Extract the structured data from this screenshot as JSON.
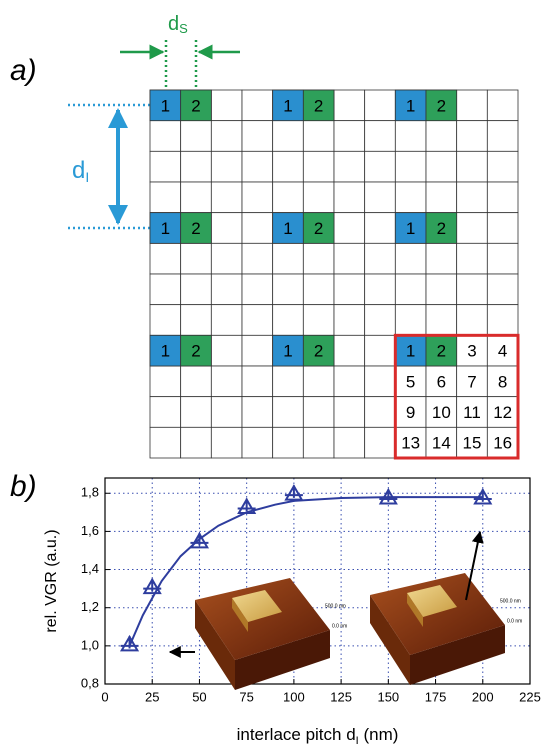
{
  "panel_a": {
    "label": "a)",
    "ds": {
      "main": "d",
      "sub": "S"
    },
    "di": {
      "main": "d",
      "sub": "I"
    },
    "pairs": [
      [
        "1",
        "2"
      ],
      [
        "1",
        "2"
      ],
      [
        "1",
        "2"
      ],
      [
        "1",
        "2"
      ],
      [
        "1",
        "2"
      ],
      [
        "1",
        "2"
      ],
      [
        "1",
        "2"
      ],
      [
        "1",
        "2"
      ]
    ],
    "matrix": [
      "1",
      "2",
      "3",
      "4",
      "5",
      "6",
      "7",
      "8",
      "9",
      "10",
      "11",
      "12",
      "13",
      "14",
      "15",
      "16"
    ]
  },
  "chart_data": {
    "type": "line",
    "panel_label": "b)",
    "y_label": "rel. VGR (a.u.)",
    "x_label": {
      "main": "interlace pitch d",
      "sub": "I",
      "suffix": " (nm)"
    },
    "x": [
      13,
      25,
      50,
      75,
      100,
      150,
      200
    ],
    "series": [
      {
        "color": "#2e3d9e",
        "values": [
          1.0,
          1.3,
          1.54,
          1.72,
          1.79,
          1.77,
          1.77
        ]
      }
    ],
    "fit": {
      "x": [
        13,
        20,
        30,
        40,
        50,
        60,
        75,
        90,
        100,
        125,
        150,
        175,
        200
      ],
      "values": [
        1.0,
        1.16,
        1.34,
        1.47,
        1.56,
        1.63,
        1.7,
        1.74,
        1.76,
        1.775,
        1.78,
        1.78,
        1.78
      ]
    },
    "xlim": [
      0,
      225
    ],
    "ylim": [
      0.8,
      1.88
    ],
    "xticks": [
      0,
      25,
      50,
      75,
      100,
      125,
      150,
      175,
      200,
      225
    ],
    "yticks": [
      {
        "value": 0.8,
        "label": "0,8"
      },
      {
        "value": 1.0,
        "label": "1,0"
      },
      {
        "value": 1.2,
        "label": "1,2"
      },
      {
        "value": 1.4,
        "label": "1,4"
      },
      {
        "value": 1.6,
        "label": "1,6"
      },
      {
        "value": 1.8,
        "label": "1,8"
      }
    ],
    "grid": true,
    "insets": [
      {
        "scale_top": "500.0 nm",
        "scale_bottom": "0.0 nm"
      },
      {
        "scale_top": "500.0 nm",
        "scale_bottom": "0.0 nm"
      }
    ]
  }
}
